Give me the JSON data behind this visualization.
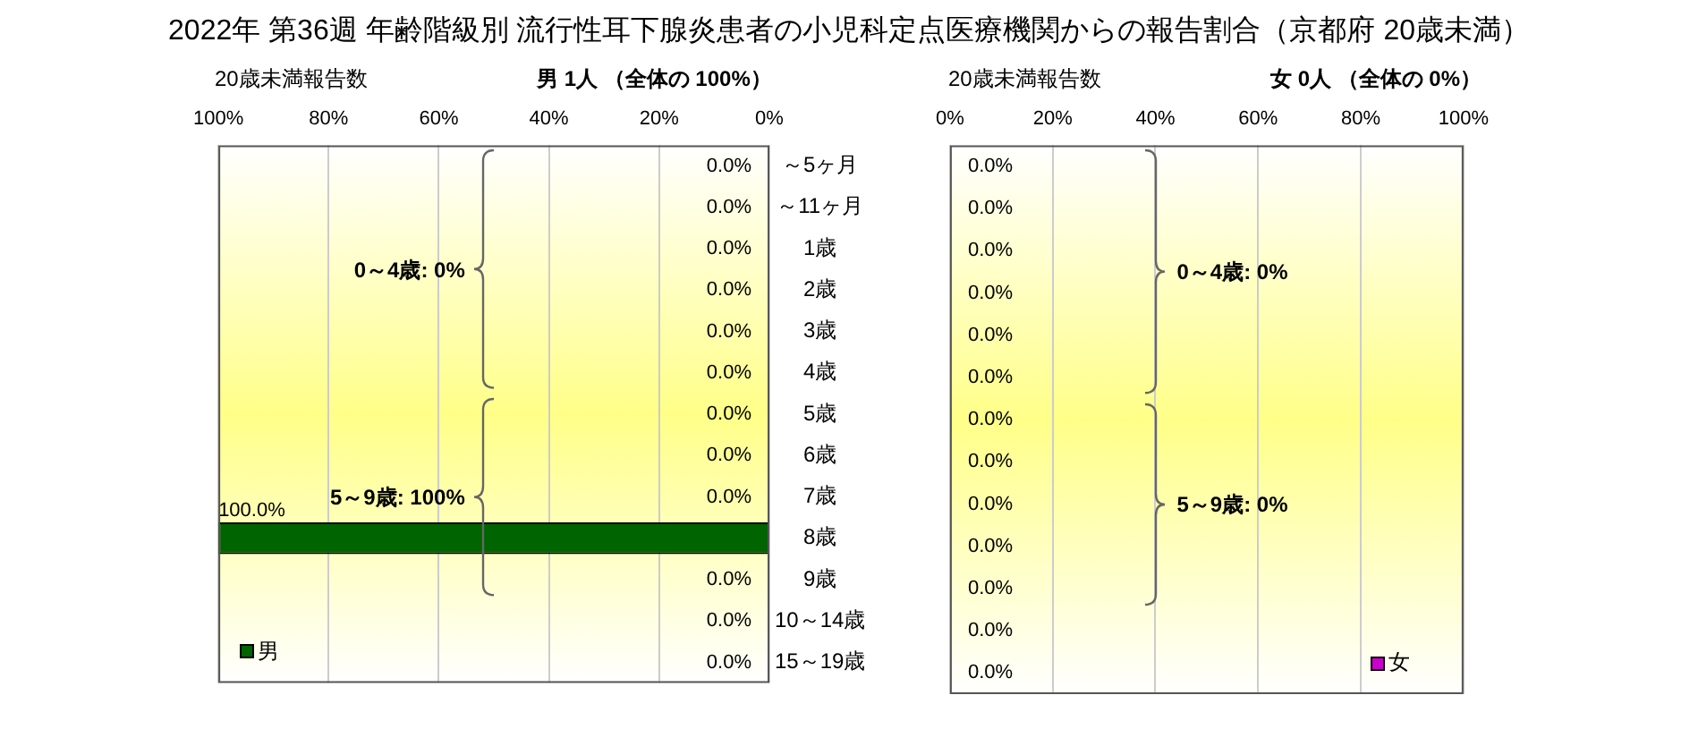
{
  "chart_data": [
    {
      "type": "bar",
      "orientation": "horizontal",
      "title": "2022年 第36週 年齢階級別 流行性耳下腺炎患者の小児科定点医療機関からの報告割合（京都府 20歳未満）",
      "xlabel": "20歳未満報告数",
      "subtitle": "男 1人 （全体の 100%）",
      "categories": [
        "～5ヶ月",
        "～11ヶ月",
        "1歳",
        "2歳",
        "3歳",
        "4歳",
        "5歳",
        "6歳",
        "7歳",
        "8歳",
        "9歳",
        "10～14歳",
        "15～19歳"
      ],
      "series": [
        {
          "name": "男",
          "color": "#006400",
          "values": [
            0,
            0,
            0,
            0,
            0,
            0,
            0,
            0,
            0,
            100,
            0,
            0,
            0
          ],
          "value_labels": [
            "0.0%",
            "0.0%",
            "0.0%",
            "0.0%",
            "0.0%",
            "0.0%",
            "0.0%",
            "0.0%",
            "0.0%",
            "100.0%",
            "0.0%",
            "0.0%",
            "0.0%"
          ]
        }
      ],
      "xlim": [
        100,
        0
      ],
      "xticks": [
        {
          "value": 100,
          "label": "100%"
        },
        {
          "value": 80,
          "label": "80%"
        },
        {
          "value": 60,
          "label": "60%"
        },
        {
          "value": 40,
          "label": "40%"
        },
        {
          "value": 20,
          "label": "20%"
        },
        {
          "value": 0,
          "label": "0%"
        }
      ],
      "annotations": [
        "0～4歳: 0%",
        "5～9歳: 100%"
      ],
      "grid": "x",
      "legend": "bottom left"
    },
    {
      "type": "bar",
      "orientation": "horizontal",
      "xlabel": "20歳未満報告数",
      "subtitle": "女  0人 （全体の  0%）",
      "categories": [
        null,
        null,
        null,
        null,
        null,
        null,
        null,
        null,
        null,
        null,
        null,
        null,
        null
      ],
      "series": [
        {
          "name": "女",
          "color": "#cc00cc",
          "values": [
            0,
            0,
            0,
            0,
            0,
            0,
            0,
            0,
            0,
            0,
            0,
            0,
            0
          ],
          "value_labels": [
            "0.0%",
            "0.0%",
            "0.0%",
            "0.0%",
            "0.0%",
            "0.0%",
            "0.0%",
            "0.0%",
            "0.0%",
            "0.0%",
            "0.0%",
            "0.0%",
            "0.0%"
          ]
        }
      ],
      "xlim": [
        0,
        100
      ],
      "xticks": [
        {
          "value": 0,
          "label": "0%"
        },
        {
          "value": 20,
          "label": "20%"
        },
        {
          "value": 40,
          "label": "40%"
        },
        {
          "value": 60,
          "label": "60%"
        },
        {
          "value": 80,
          "label": "80%"
        },
        {
          "value": 100,
          "label": "100%"
        }
      ],
      "annotations": [
        "0～4歳: 0%",
        "5～9歳: 0%"
      ],
      "grid": "x",
      "legend": "bottom right",
      "tick_labels": "x"
    }
  ]
}
